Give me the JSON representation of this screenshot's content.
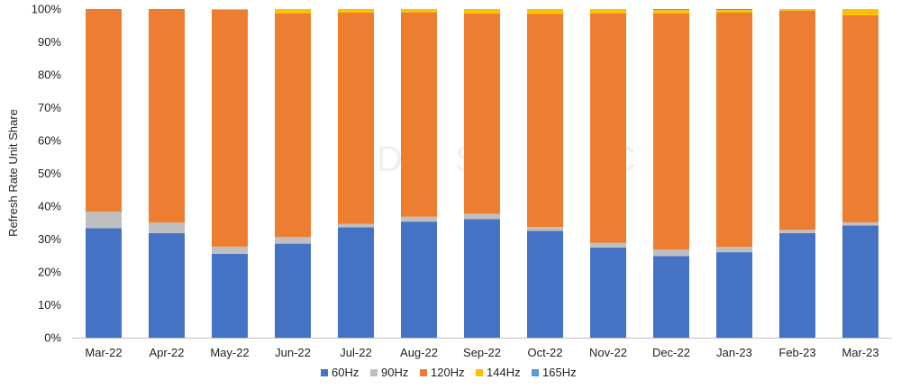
{
  "chart_data": {
    "type": "bar",
    "stacked": true,
    "ylabel": "Refresh Rate Unit Share",
    "xlabel": "",
    "ylim": [
      0,
      100
    ],
    "yticks": [
      0,
      10,
      20,
      30,
      40,
      50,
      60,
      70,
      80,
      90,
      100
    ],
    "ytick_labels": [
      "0%",
      "10%",
      "20%",
      "30%",
      "40%",
      "50%",
      "60%",
      "70%",
      "80%",
      "90%",
      "100%"
    ],
    "grid": false,
    "legend_position": "bottom",
    "categories": [
      "Mar-22",
      "Apr-22",
      "May-22",
      "Jun-22",
      "Jul-22",
      "Aug-22",
      "Sep-22",
      "Oct-22",
      "Nov-22",
      "Dec-22",
      "Jan-23",
      "Feb-23",
      "Mar-23"
    ],
    "series": [
      {
        "name": "60Hz",
        "color": "#4472C4",
        "values": [
          33.3,
          31.8,
          25.5,
          28.6,
          33.6,
          35.3,
          36.1,
          32.5,
          27.4,
          24.8,
          26.0,
          31.8,
          34.1
        ]
      },
      {
        "name": "90Hz",
        "color": "#BFBFBF",
        "values": [
          5.0,
          3.2,
          2.2,
          2.0,
          1.0,
          1.5,
          1.6,
          1.2,
          1.5,
          2.0,
          1.6,
          1.0,
          1.0
        ]
      },
      {
        "name": "120Hz",
        "color": "#ED7D31",
        "values": [
          61.7,
          65.0,
          72.1,
          68.1,
          64.3,
          62.2,
          60.9,
          64.8,
          69.8,
          71.9,
          71.3,
          66.7,
          63.0
        ]
      },
      {
        "name": "144Hz",
        "color": "#FFC000",
        "values": [
          0.0,
          0.0,
          0.2,
          1.3,
          1.1,
          1.0,
          1.4,
          1.5,
          1.3,
          1.0,
          0.8,
          0.5,
          1.9
        ]
      },
      {
        "name": "165Hz",
        "color": "#5B9BD5",
        "values": [
          0.0,
          0.0,
          0.0,
          0.0,
          0.0,
          0.0,
          0.0,
          0.0,
          0.0,
          0.3,
          0.3,
          0.0,
          0.0
        ]
      }
    ],
    "watermark": "DSCC"
  }
}
